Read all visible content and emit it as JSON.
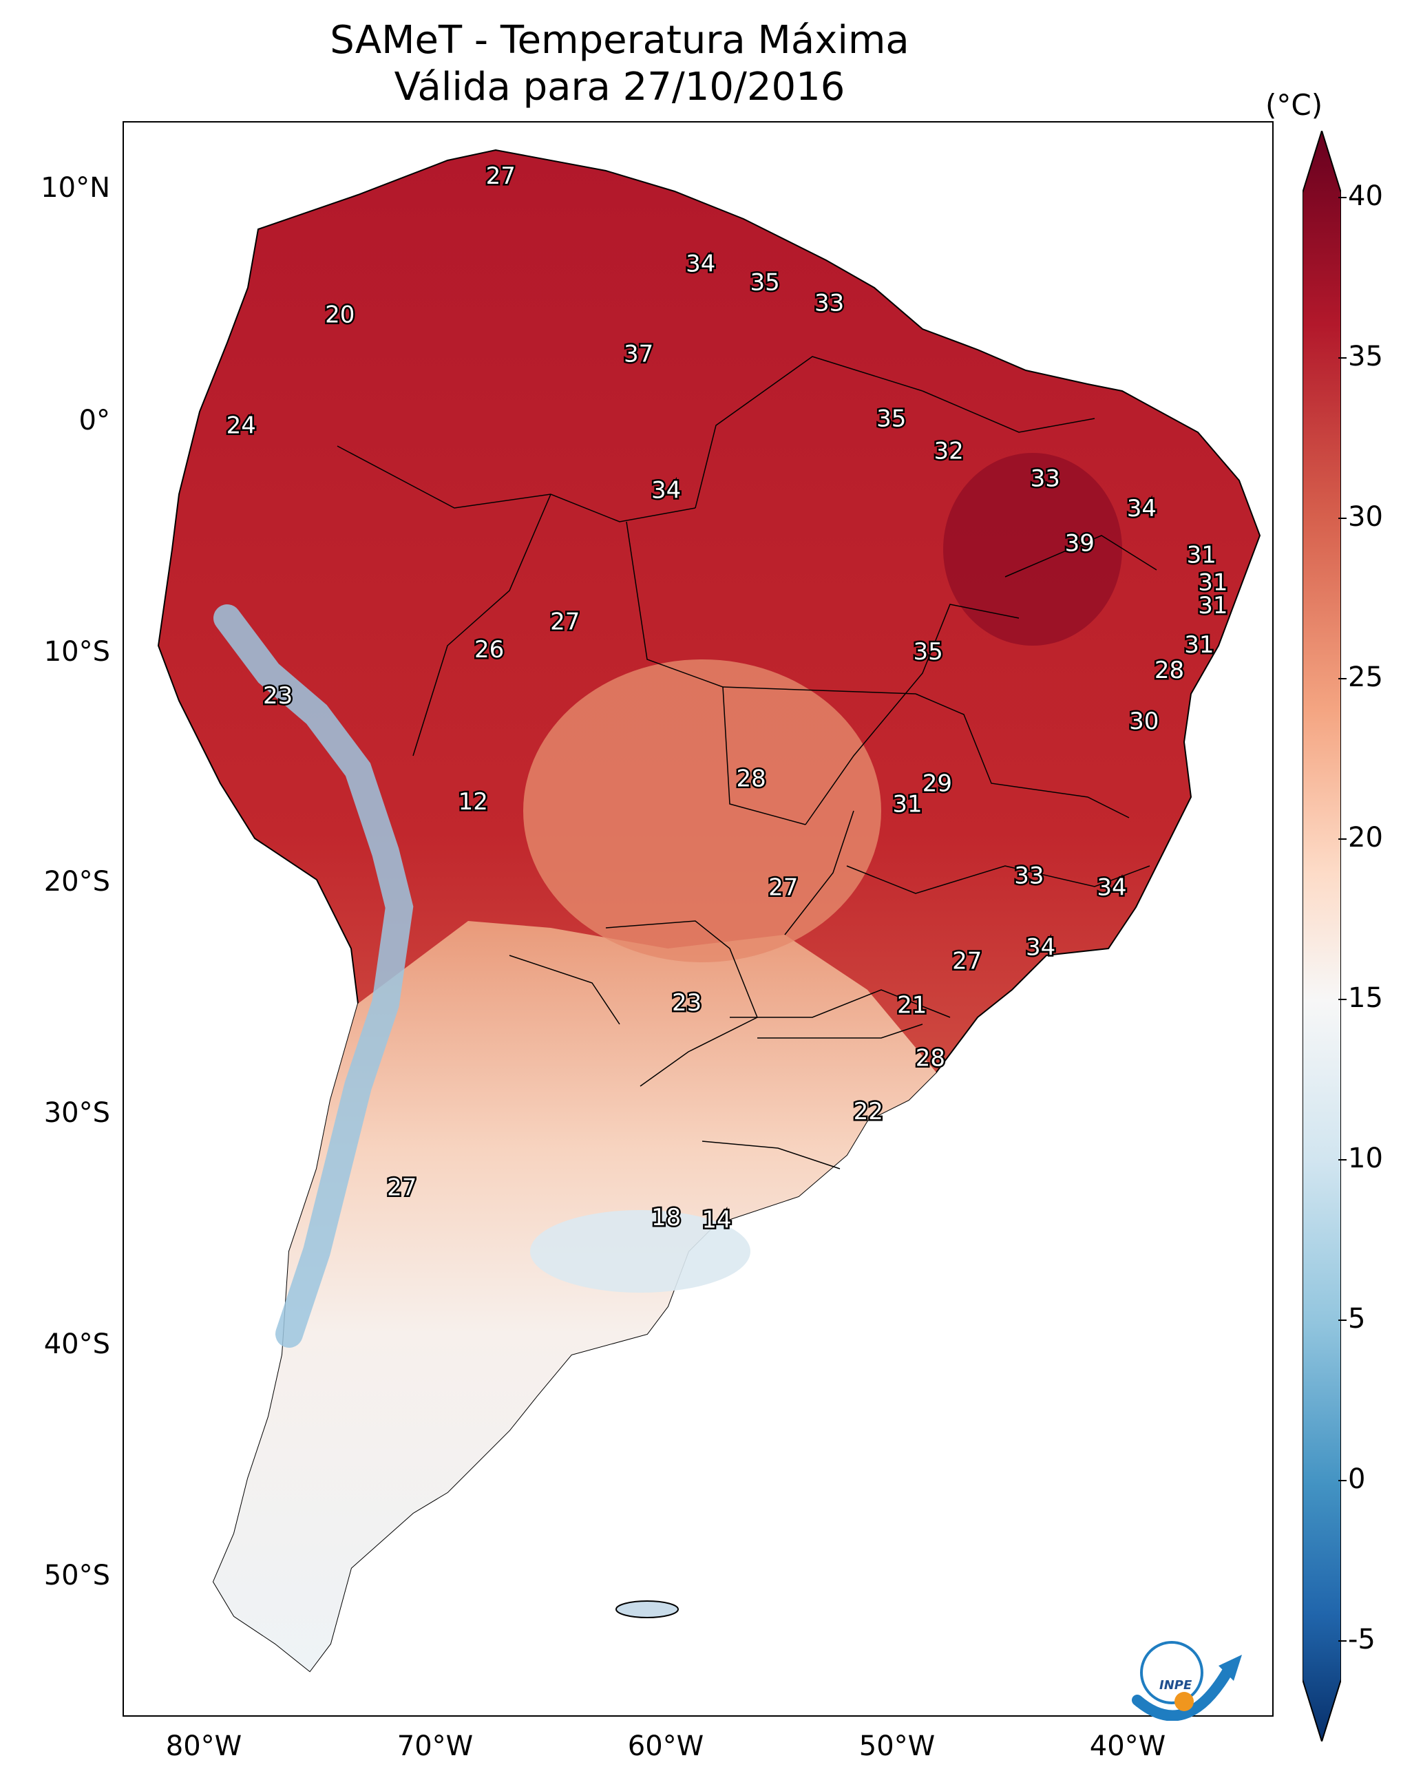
{
  "title": {
    "line1": "SAMeT - Temperatura Máxima",
    "line2": "Válida para 27/10/2016"
  },
  "axes": {
    "lat_labels": [
      "10°N",
      "0°",
      "10°S",
      "20°S",
      "30°S",
      "40°S",
      "50°S"
    ],
    "lon_labels": [
      "80°W",
      "70°W",
      "60°W",
      "50°W",
      "40°W"
    ]
  },
  "colorbar": {
    "unit": "(°C)",
    "ticks": [
      "40",
      "35",
      "30",
      "25",
      "20",
      "15",
      "10",
      "5",
      "0",
      "-5"
    ],
    "min": -5,
    "max": 40,
    "colors": [
      "#08306b",
      "#2166ac",
      "#4393c3",
      "#92c5de",
      "#d1e5f0",
      "#f7f7f7",
      "#fddbc7",
      "#f4a582",
      "#d6604d",
      "#b2182b",
      "#67001f"
    ]
  },
  "map_labels": [
    {
      "value": "27",
      "lon": -66.5,
      "lat": 10.5
    },
    {
      "value": "20",
      "lon": -73.5,
      "lat": 4.5
    },
    {
      "value": "24",
      "lon": -77.8,
      "lat": -0.3
    },
    {
      "value": "34",
      "lon": -57.8,
      "lat": 6.7
    },
    {
      "value": "35",
      "lon": -55.0,
      "lat": 5.9
    },
    {
      "value": "33",
      "lon": -52.2,
      "lat": 5.0
    },
    {
      "value": "37",
      "lon": -60.5,
      "lat": 2.8
    },
    {
      "value": "35",
      "lon": -49.5,
      "lat": 0.0
    },
    {
      "value": "32",
      "lon": -47.0,
      "lat": -1.4
    },
    {
      "value": "33",
      "lon": -42.8,
      "lat": -2.6
    },
    {
      "value": "34",
      "lon": -59.3,
      "lat": -3.1
    },
    {
      "value": "34",
      "lon": -38.6,
      "lat": -3.9
    },
    {
      "value": "39",
      "lon": -41.3,
      "lat": -5.4
    },
    {
      "value": "31",
      "lon": -36.0,
      "lat": -5.9
    },
    {
      "value": "31",
      "lon": -35.5,
      "lat": -7.1
    },
    {
      "value": "31",
      "lon": -35.5,
      "lat": -8.1
    },
    {
      "value": "27",
      "lon": -63.7,
      "lat": -8.8
    },
    {
      "value": "26",
      "lon": -67.0,
      "lat": -10.0
    },
    {
      "value": "35",
      "lon": -47.9,
      "lat": -10.1
    },
    {
      "value": "31",
      "lon": -36.1,
      "lat": -9.8
    },
    {
      "value": "28",
      "lon": -37.4,
      "lat": -10.9
    },
    {
      "value": "23",
      "lon": -76.2,
      "lat": -12.0
    },
    {
      "value": "30",
      "lon": -38.5,
      "lat": -13.1
    },
    {
      "value": "12",
      "lon": -67.7,
      "lat": -16.6
    },
    {
      "value": "28",
      "lon": -55.6,
      "lat": -15.6
    },
    {
      "value": "29",
      "lon": -47.5,
      "lat": -15.8
    },
    {
      "value": "31",
      "lon": -48.8,
      "lat": -16.7
    },
    {
      "value": "33",
      "lon": -43.5,
      "lat": -19.8
    },
    {
      "value": "34",
      "lon": -39.9,
      "lat": -20.3
    },
    {
      "value": "27",
      "lon": -54.2,
      "lat": -20.3
    },
    {
      "value": "27",
      "lon": -46.2,
      "lat": -23.5
    },
    {
      "value": "34",
      "lon": -43.0,
      "lat": -22.9
    },
    {
      "value": "23",
      "lon": -58.4,
      "lat": -25.3
    },
    {
      "value": "21",
      "lon": -48.6,
      "lat": -25.4
    },
    {
      "value": "28",
      "lon": -47.8,
      "lat": -27.7
    },
    {
      "value": "22",
      "lon": -50.5,
      "lat": -30.0
    },
    {
      "value": "27",
      "lon": -70.8,
      "lat": -33.3
    },
    {
      "value": "18",
      "lon": -59.3,
      "lat": -34.6
    },
    {
      "value": "14",
      "lon": -57.1,
      "lat": -34.7
    }
  ]
}
